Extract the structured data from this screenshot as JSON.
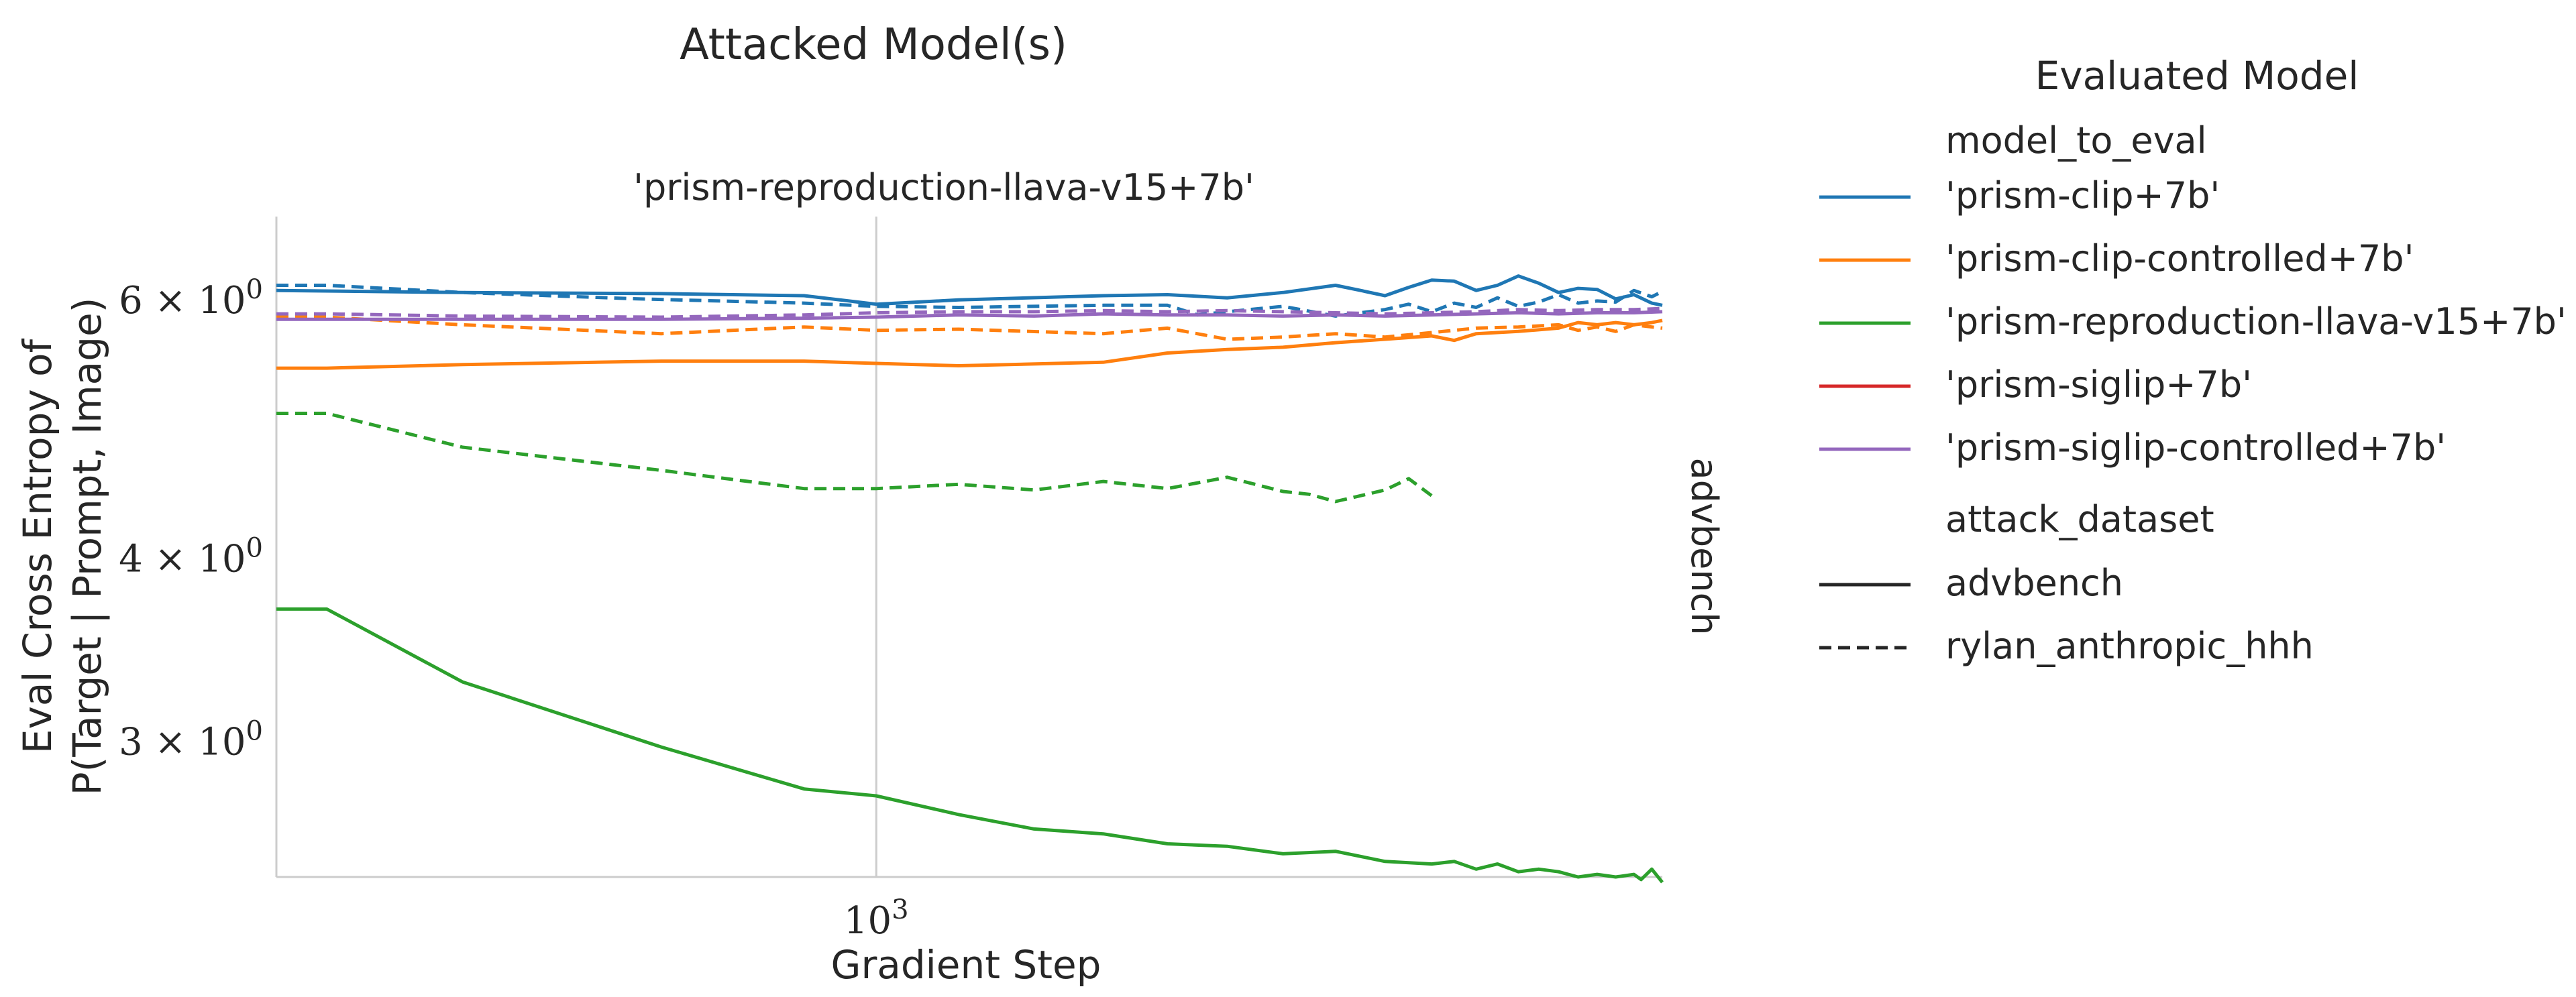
{
  "chart_data": {
    "type": "line",
    "suptitle": "Attacked Model(s)",
    "title": "'prism-reproduction-llava-v15+7b'",
    "row_label": "advbench",
    "xlabel": "Gradient Step",
    "ylabel_line1": "Eval Cross Entropy of",
    "ylabel_line2": "P(Target | Prompt, Image)",
    "xscale": "log",
    "yscale": "log",
    "xlim": [
      500,
      2480
    ],
    "ylim": [
      2.43,
      6.85
    ],
    "xticks": [
      {
        "value": 1000,
        "base": "10",
        "exp": "3"
      }
    ],
    "yticks": [
      {
        "value": 6,
        "mant": "6",
        "base": "10",
        "exp": "0"
      },
      {
        "value": 4,
        "mant": "4",
        "base": "10",
        "exp": "0"
      },
      {
        "value": 3,
        "mant": "3",
        "base": "10",
        "exp": "0"
      }
    ],
    "grid": "x-major",
    "legend": {
      "placement": "right",
      "title": "Evaluated Model",
      "hue_title": "model_to_eval",
      "style_title": "attack_dataset",
      "style_entries": [
        {
          "label": "advbench",
          "dash": "solid"
        },
        {
          "label": "rylan_anthropic_hhh",
          "dash": "dashed"
        }
      ]
    },
    "series": [
      {
        "name": "'prism-clip+7b'",
        "color": "#1f77b4",
        "dash": "solid",
        "x": [
          500,
          620,
          780,
          920,
          1000,
          1100,
          1300,
          1400,
          1500,
          1600,
          1700,
          1750,
          1800,
          1850,
          1900,
          1950,
          2000,
          2050,
          2100,
          2150,
          2200,
          2250,
          2300,
          2350,
          2400,
          2450,
          2480
        ],
        "y": [
          6.1,
          6.08,
          6.07,
          6.05,
          5.97,
          6.01,
          6.05,
          6.06,
          6.03,
          6.08,
          6.15,
          6.1,
          6.05,
          6.13,
          6.2,
          6.19,
          6.1,
          6.15,
          6.24,
          6.17,
          6.08,
          6.12,
          6.11,
          6.02,
          6.06,
          5.98,
          5.96
        ]
      },
      {
        "name": "'prism-clip+7b'",
        "color": "#1f77b4",
        "dash": "dashed",
        "x": [
          500,
          530,
          620,
          760,
          920,
          1000,
          1100,
          1300,
          1400,
          1450,
          1500,
          1600,
          1700,
          1800,
          1850,
          1900,
          1950,
          2000,
          2050,
          2100,
          2150,
          2200,
          2250,
          2300,
          2350,
          2400,
          2450,
          2480
        ],
        "y": [
          6.15,
          6.15,
          6.08,
          6.02,
          5.98,
          5.95,
          5.94,
          5.96,
          5.96,
          5.87,
          5.9,
          5.95,
          5.86,
          5.92,
          5.97,
          5.9,
          5.98,
          5.94,
          6.03,
          5.95,
          5.99,
          6.06,
          5.98,
          6.0,
          5.99,
          6.1,
          6.04,
          6.09
        ]
      },
      {
        "name": "'prism-clip-controlled+7b'",
        "color": "#ff7f0e",
        "dash": "solid",
        "x": [
          500,
          530,
          620,
          780,
          920,
          1000,
          1100,
          1300,
          1400,
          1500,
          1600,
          1700,
          1800,
          1900,
          1950,
          2000,
          2100,
          2200,
          2250,
          2300,
          2350,
          2400,
          2450,
          2480
        ],
        "y": [
          5.4,
          5.4,
          5.43,
          5.46,
          5.46,
          5.44,
          5.42,
          5.45,
          5.53,
          5.56,
          5.58,
          5.62,
          5.65,
          5.68,
          5.64,
          5.7,
          5.72,
          5.75,
          5.8,
          5.78,
          5.8,
          5.78,
          5.8,
          5.82
        ]
      },
      {
        "name": "'prism-clip-controlled+7b'",
        "color": "#ff7f0e",
        "dash": "dashed",
        "x": [
          500,
          530,
          620,
          780,
          920,
          1000,
          1100,
          1300,
          1400,
          1500,
          1600,
          1700,
          1800,
          1900,
          2000,
          2100,
          2200,
          2250,
          2300,
          2350,
          2400,
          2450,
          2480
        ],
        "y": [
          5.85,
          5.85,
          5.78,
          5.7,
          5.76,
          5.73,
          5.74,
          5.7,
          5.75,
          5.65,
          5.67,
          5.7,
          5.67,
          5.71,
          5.75,
          5.76,
          5.78,
          5.73,
          5.76,
          5.72,
          5.78,
          5.76,
          5.75
        ]
      },
      {
        "name": "'prism-reproduction-llava-v15+7b'",
        "color": "#2ca02c",
        "dash": "solid",
        "x": [
          500,
          530,
          620,
          780,
          920,
          1000,
          1100,
          1200,
          1300,
          1400,
          1500,
          1600,
          1700,
          1800,
          1900,
          1950,
          2000,
          2050,
          2100,
          2150,
          2200,
          2250,
          2300,
          2350,
          2400,
          2420,
          2450,
          2480
        ],
        "y": [
          3.7,
          3.7,
          3.3,
          2.98,
          2.79,
          2.76,
          2.68,
          2.62,
          2.6,
          2.56,
          2.55,
          2.52,
          2.53,
          2.49,
          2.48,
          2.49,
          2.46,
          2.48,
          2.45,
          2.46,
          2.45,
          2.43,
          2.44,
          2.43,
          2.44,
          2.42,
          2.46,
          2.41
        ]
      },
      {
        "name": "'prism-reproduction-llava-v15+7b'",
        "color": "#2ca02c",
        "dash": "dashed",
        "x": [
          500,
          530,
          620,
          780,
          920,
          1000,
          1100,
          1200,
          1300,
          1400,
          1500,
          1600,
          1650,
          1700,
          1800,
          1850,
          1900
        ],
        "y": [
          5.03,
          5.03,
          4.77,
          4.6,
          4.47,
          4.47,
          4.5,
          4.46,
          4.52,
          4.47,
          4.55,
          4.45,
          4.43,
          4.38,
          4.46,
          4.54,
          4.42
        ]
      },
      {
        "name": "'prism-siglip-controlled+7b'",
        "color": "#9467bd",
        "dash": "solid",
        "x": [
          500,
          530,
          620,
          780,
          920,
          1000,
          1100,
          1200,
          1300,
          1400,
          1500,
          1600,
          1700,
          1800,
          1900,
          2000,
          2100,
          2200,
          2300,
          2400,
          2480
        ],
        "y": [
          5.83,
          5.83,
          5.83,
          5.83,
          5.84,
          5.85,
          5.87,
          5.86,
          5.88,
          5.87,
          5.87,
          5.86,
          5.87,
          5.86,
          5.87,
          5.88,
          5.89,
          5.88,
          5.89,
          5.89,
          5.9
        ]
      },
      {
        "name": "'prism-siglip-controlled+7b'",
        "color": "#9467bd",
        "dash": "dashed",
        "x": [
          500,
          530,
          620,
          780,
          920,
          1000,
          1100,
          1200,
          1300,
          1400,
          1500,
          1600,
          1700,
          1800,
          1900,
          2000,
          2100,
          2200,
          2300,
          2400,
          2480
        ],
        "y": [
          5.88,
          5.88,
          5.86,
          5.85,
          5.87,
          5.89,
          5.9,
          5.9,
          5.91,
          5.9,
          5.91,
          5.9,
          5.89,
          5.88,
          5.89,
          5.9,
          5.92,
          5.91,
          5.92,
          5.92,
          5.93
        ]
      }
    ],
    "legend_hue_entries": [
      {
        "label": "'prism-clip+7b'",
        "color": "#1f77b4"
      },
      {
        "label": "'prism-clip-controlled+7b'",
        "color": "#ff7f0e"
      },
      {
        "label": "'prism-reproduction-llava-v15+7b'",
        "color": "#2ca02c"
      },
      {
        "label": "'prism-siglip+7b'",
        "color": "#d62728"
      },
      {
        "label": "'prism-siglip-controlled+7b'",
        "color": "#9467bd"
      }
    ]
  }
}
